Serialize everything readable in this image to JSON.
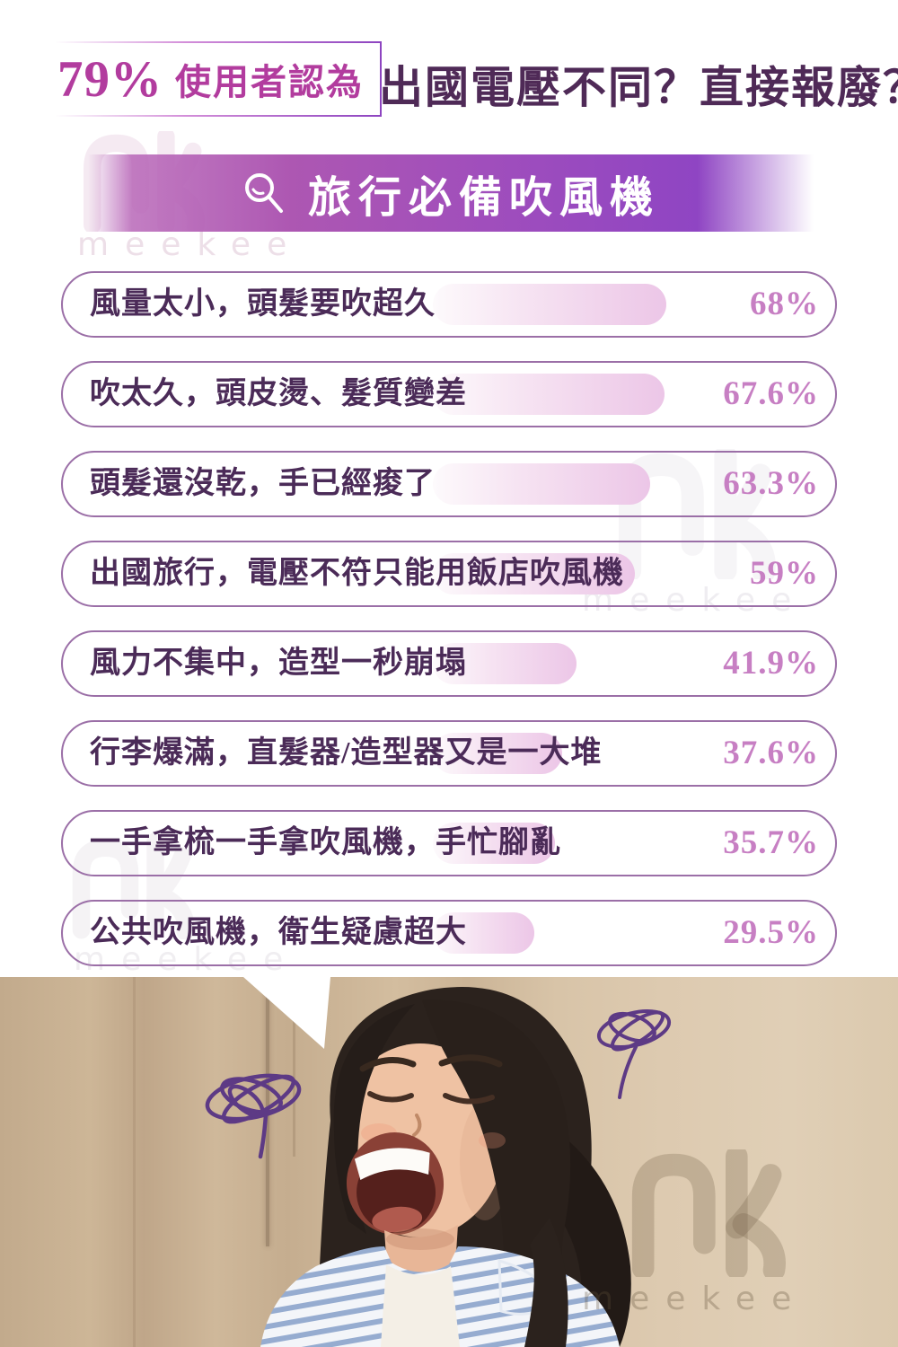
{
  "brand": {
    "watermark_text": "meekee"
  },
  "header": {
    "stat": "79%",
    "stat_claim": "使用者認為",
    "title": "出國電壓不同？直接報廢？"
  },
  "banner": {
    "icon": "magnifier-icon",
    "title": "旅行必備吹風機"
  },
  "survey": {
    "items": [
      {
        "label": "風量太小，頭髮要吹超久",
        "value": 68,
        "pct": "68%"
      },
      {
        "label": "吹太久，頭皮燙、髮質變差",
        "value": 67.6,
        "pct": "67.6%"
      },
      {
        "label": "頭髮還沒乾，手已經痠了",
        "value": 63.3,
        "pct": "63.3%"
      },
      {
        "label": "出國旅行，電壓不符只能用飯店吹風機",
        "value": 59,
        "pct": "59%"
      },
      {
        "label": "風力不集中，造型一秒崩塌",
        "value": 41.9,
        "pct": "41.9%"
      },
      {
        "label": "行李爆滿，直髮器/造型器又是一大堆",
        "value": 37.6,
        "pct": "37.6%"
      },
      {
        "label": "一手拿梳一手拿吹風機，手忙腳亂",
        "value": 35.7,
        "pct": "35.7%"
      },
      {
        "label": "公共吹風機，衛生疑慮超大",
        "value": 29.5,
        "pct": "29.5%"
      }
    ]
  },
  "chart_data": {
    "type": "bar",
    "orientation": "horizontal",
    "title": "旅行必備吹風機",
    "subtitle": "79% 使用者認為 出國電壓不同？直接報廢？",
    "categories": [
      "風量太小，頭髮要吹超久",
      "吹太久，頭皮燙、髮質變差",
      "頭髮還沒乾，手已經痠了",
      "出國旅行，電壓不符只能用飯店吹風機",
      "風力不集中，造型一秒崩塌",
      "行李爆滿，直髮器/造型器又是一大堆",
      "一手拿梳一手拿吹風機，手忙腳亂",
      "公共吹風機，衛生疑慮超大"
    ],
    "values": [
      68,
      67.6,
      63.3,
      59,
      41.9,
      37.6,
      35.7,
      29.5
    ],
    "value_labels": [
      "68%",
      "67.6%",
      "63.3%",
      "59%",
      "41.9%",
      "37.6%",
      "35.7%",
      "29.5%"
    ],
    "xlim": [
      0,
      100
    ],
    "grid": false,
    "legend": false
  },
  "colors": {
    "accent_magenta": "#b23c9e",
    "title_purple": "#4f2a57",
    "banner_gradient_from": "#b564b6",
    "banner_gradient_to": "#8d44c4",
    "row_border": "#9b6fa7",
    "row_text": "#4b2b58",
    "bar_pink": "#ecc6e7",
    "percent_pink": "#c77fc3",
    "scribble_purple": "#5d3a85"
  }
}
